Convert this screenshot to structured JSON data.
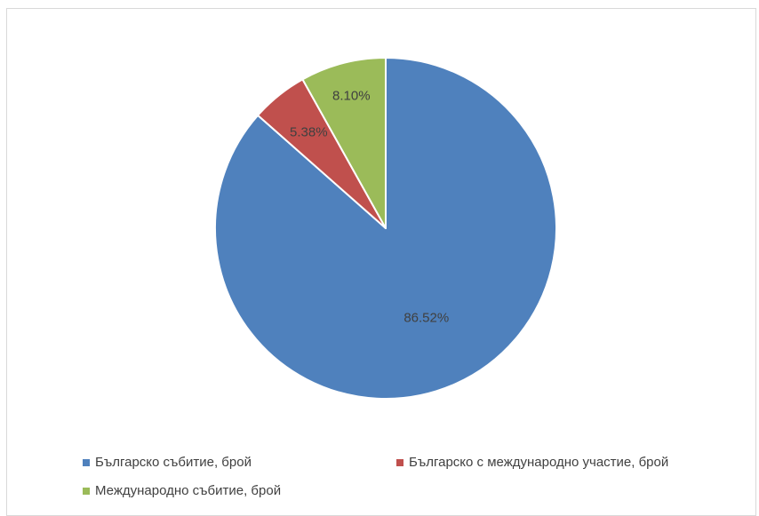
{
  "chart_data": {
    "type": "pie",
    "title": "",
    "start_angle_deg": 0,
    "direction": "clockwise",
    "legend_position": "bottom",
    "slices": [
      {
        "name": "Българско събитие, брой",
        "value": 86.52,
        "label": "86.52%",
        "color": "#4F81BD"
      },
      {
        "name": "Българско с международно участие, брой",
        "value": 5.38,
        "label": "5.38%",
        "color": "#C0504D"
      },
      {
        "name": "Международно събитие, брой",
        "value": 8.1,
        "label": "8.10%",
        "color": "#9BBB59"
      }
    ]
  }
}
